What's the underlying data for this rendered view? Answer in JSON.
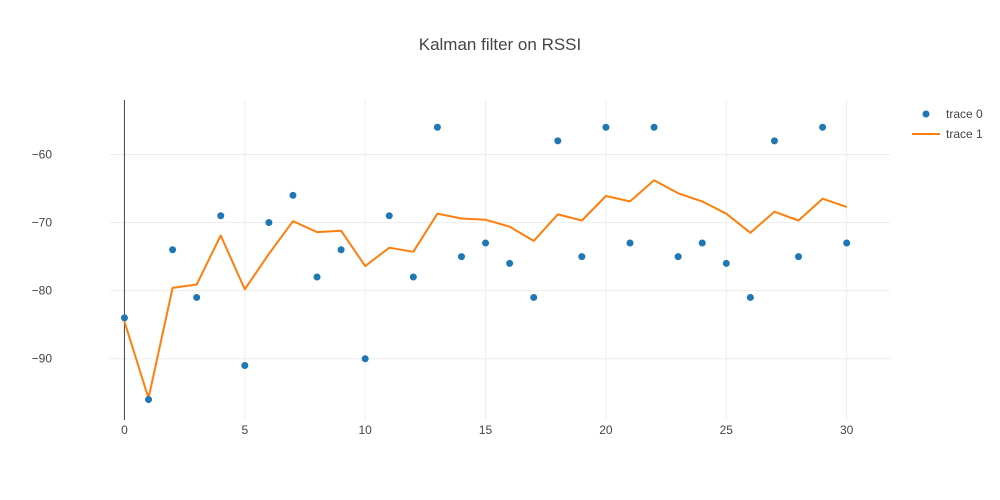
{
  "chart_data": {
    "type": "line",
    "title": "Kalman filter on RSSI",
    "xlabel": "",
    "ylabel": "",
    "xlim": [
      -0.6,
      31.8
    ],
    "ylim": [
      -99,
      -52
    ],
    "x_ticks": [
      0,
      5,
      10,
      15,
      20,
      25,
      30
    ],
    "y_ticks": [
      -90,
      -80,
      -70,
      -60
    ],
    "grid": true,
    "legend_position": "top-right",
    "x": [
      0,
      1,
      2,
      3,
      4,
      5,
      6,
      7,
      8,
      9,
      10,
      11,
      12,
      13,
      14,
      15,
      16,
      17,
      18,
      19,
      20,
      21,
      22,
      23,
      24,
      25,
      26,
      27,
      28,
      29,
      30
    ],
    "series": [
      {
        "name": "trace 0",
        "mode": "markers",
        "color": "#1f77b4",
        "values": [
          -84,
          -96,
          -74,
          -81,
          -69,
          -91,
          -70,
          -66,
          -78,
          -74,
          -90,
          -69,
          -78,
          -56,
          -75,
          -73,
          -76,
          -81,
          -58,
          -75,
          -56,
          -73,
          -56,
          -75,
          -73,
          -76,
          -81,
          -58,
          -75,
          -56,
          -73
        ]
      },
      {
        "name": "trace 1",
        "mode": "lines",
        "color": "#ff7f0e",
        "values": [
          -84.5,
          -95.8,
          -79.6,
          -79.1,
          -71.9,
          -79.8,
          -74.6,
          -69.8,
          -71.4,
          -71.2,
          -76.4,
          -73.7,
          -74.3,
          -68.7,
          -69.4,
          -69.6,
          -70.6,
          -72.7,
          -68.8,
          -69.7,
          -66.1,
          -66.9,
          -63.8,
          -65.7,
          -66.9,
          -68.7,
          -71.5,
          -68.4,
          -69.7,
          -66.5,
          -67.7
        ]
      }
    ]
  }
}
